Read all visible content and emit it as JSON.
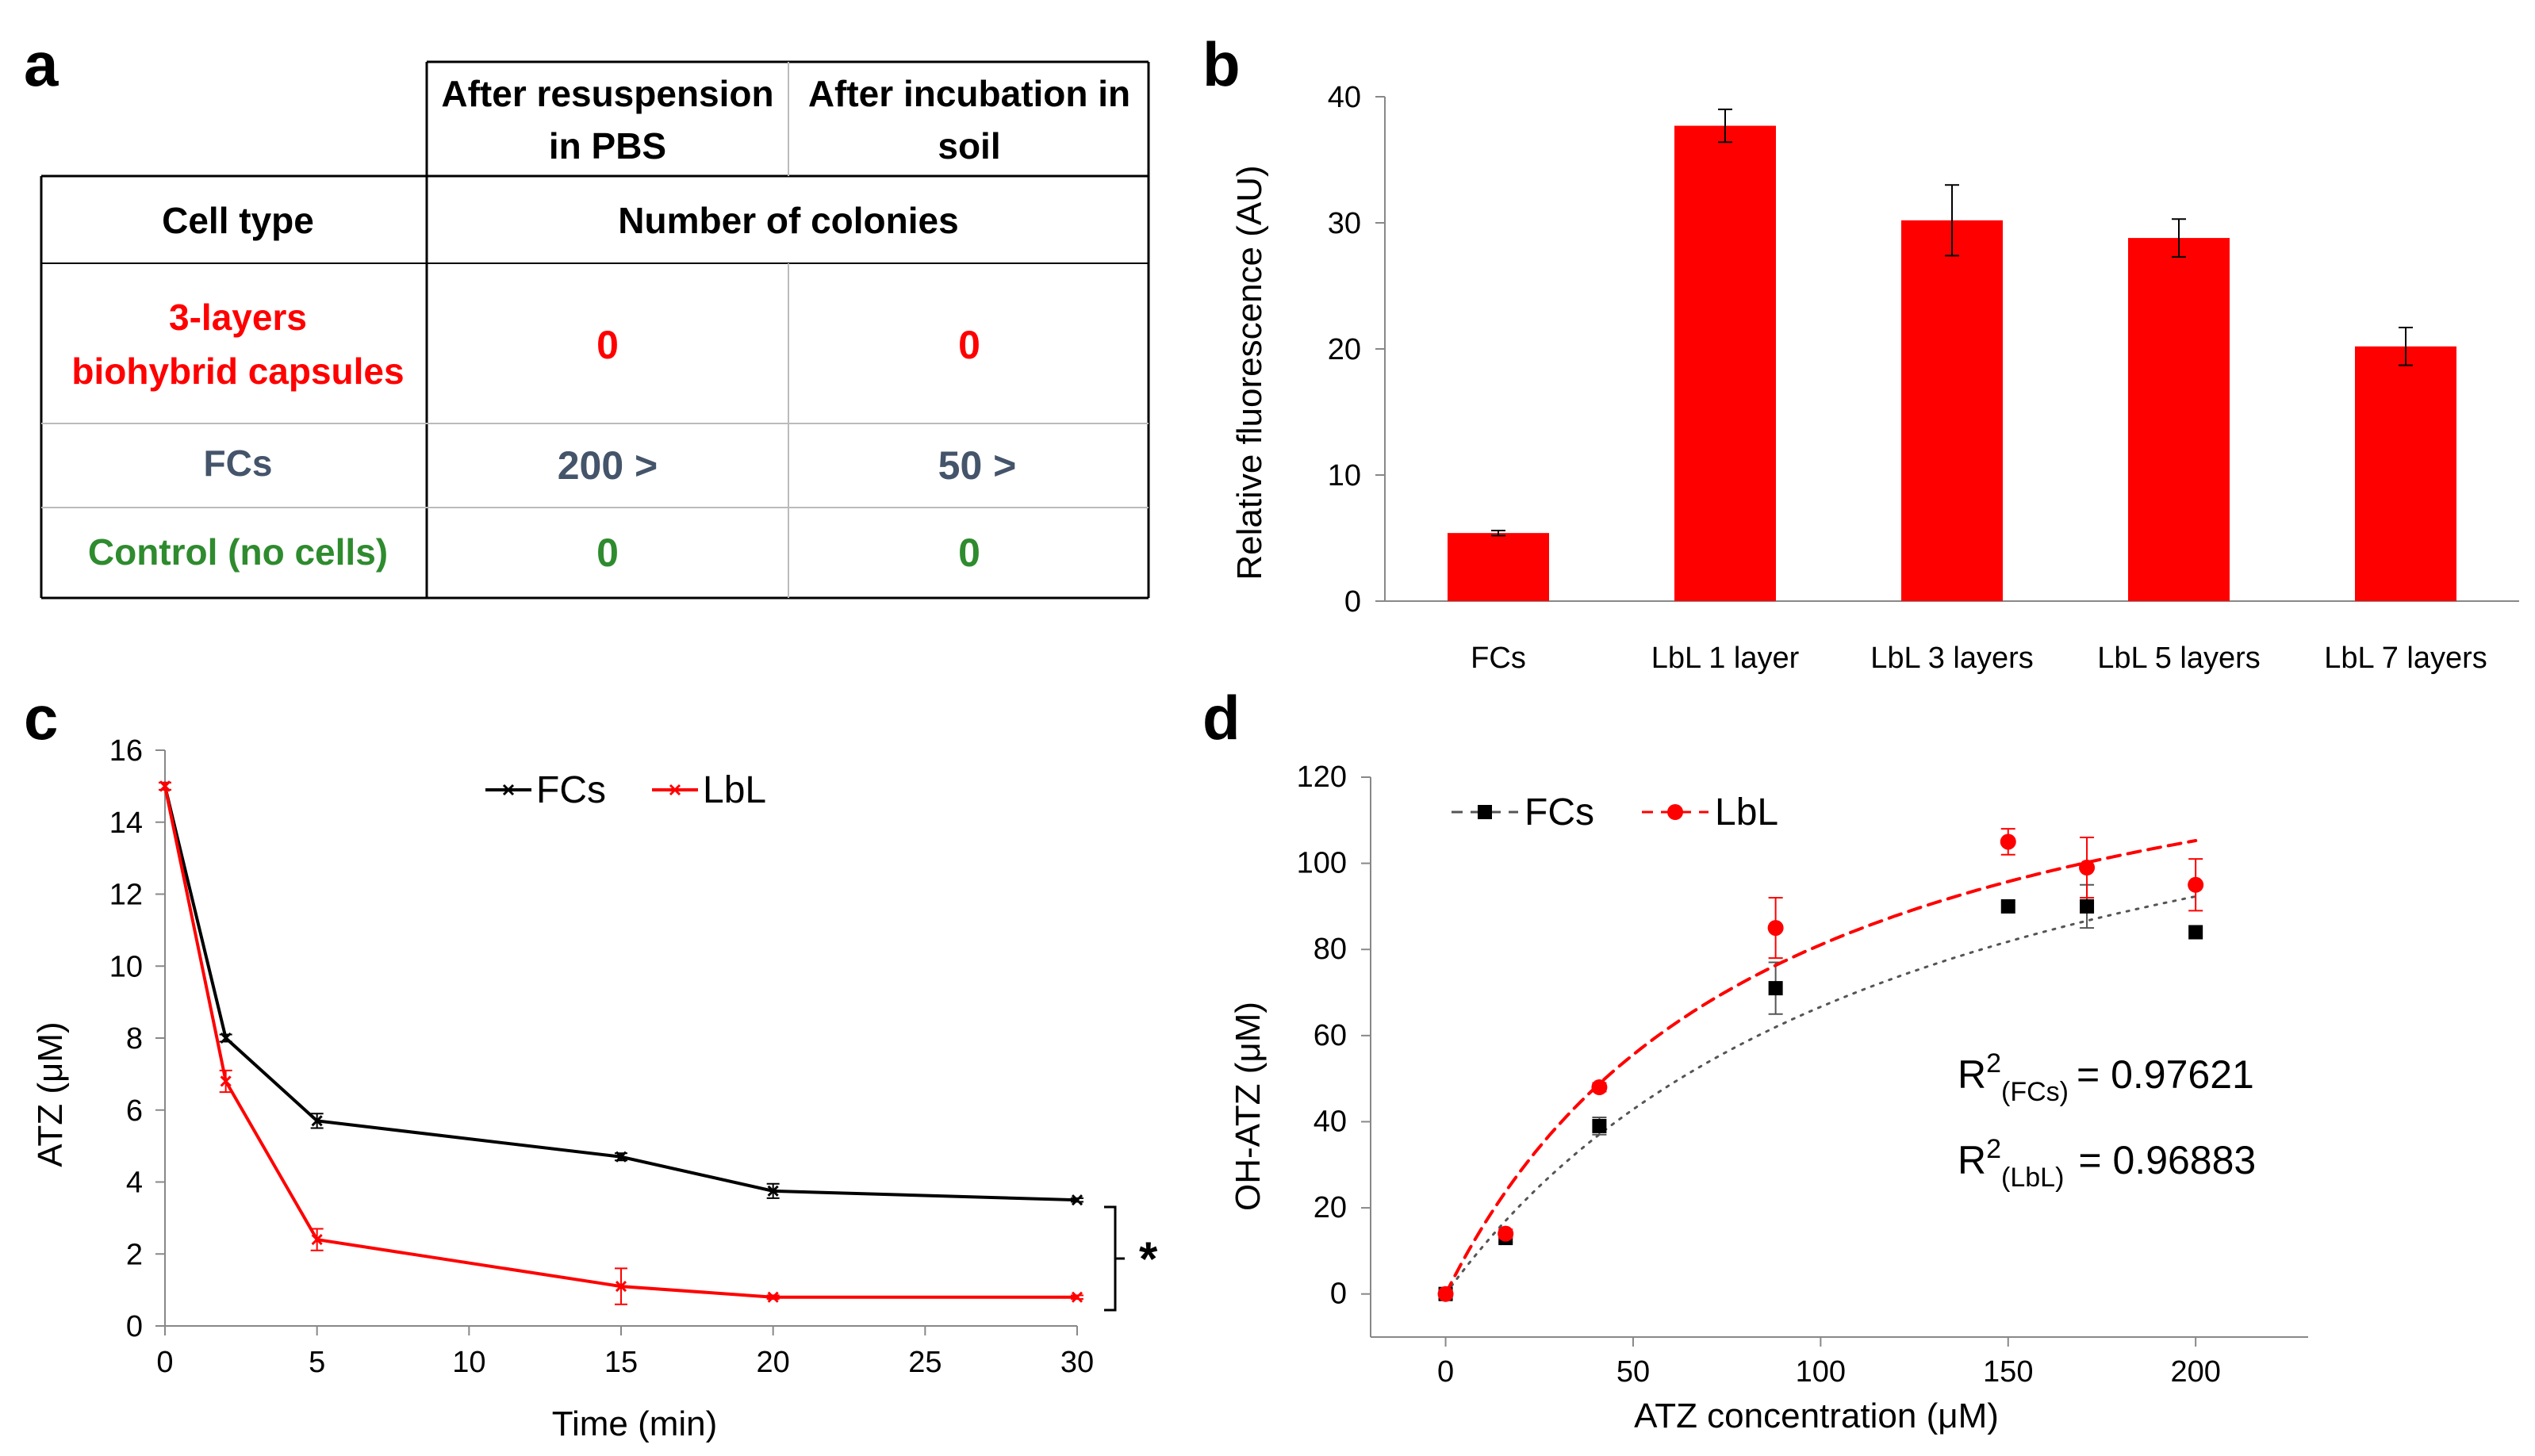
{
  "panels": {
    "a": {
      "label": "a",
      "header_col1_line1": "After resuspension",
      "header_col1_line2": "in PBS",
      "header_col2_line1": "After incubation in",
      "header_col2_line2": "soil",
      "cell_type_label": "Cell type",
      "colonies_label": "Number of colonies",
      "rows": [
        {
          "name_line1": "3-layers",
          "name_line2": "biohybrid capsules",
          "pbs": "0",
          "soil": "0",
          "color": "#ff0000"
        },
        {
          "name_line1": "FCs",
          "name_line2": "",
          "pbs": "200 >",
          "soil": "50 >",
          "color": "#44546a"
        },
        {
          "name_line1": "Control (no cells)",
          "name_line2": "",
          "pbs": "0",
          "soil": "0",
          "color": "#2e8b2e"
        }
      ]
    },
    "b": {
      "label": "b"
    },
    "c": {
      "label": "c",
      "significance": "*"
    },
    "d": {
      "label": "d",
      "r2_prefix": "R",
      "r2_sup": "2",
      "r2_fcs_sub": "(FCs)",
      "r2_fcs_value": "= 0.97621",
      "r2_lbl_sub": "(LbL)",
      "r2_lbl_value": "= 0.96883"
    }
  },
  "chart_data": [
    {
      "panel": "b",
      "type": "bar",
      "categories": [
        "FCs",
        "LbL 1   layer",
        "LbL 3 layers",
        "LbL 5 layers",
        "LbL 7 layers"
      ],
      "values": [
        5.4,
        37.7,
        30.2,
        28.8,
        20.2
      ],
      "errors": [
        0.2,
        1.3,
        2.8,
        1.5,
        1.5
      ],
      "ylabel": "Relative fluorescence (AU)",
      "xlabel": "",
      "ylim": [
        0,
        40
      ],
      "yticks": [
        0,
        10,
        20,
        30,
        40
      ],
      "bar_color": "#ff0000"
    },
    {
      "panel": "c",
      "type": "line",
      "xlabel": "Time (min)",
      "ylabel": "ATZ (μM)",
      "xlim": [
        0,
        30
      ],
      "ylim": [
        0,
        16
      ],
      "xticks": [
        0,
        5,
        10,
        15,
        20,
        25,
        30
      ],
      "yticks": [
        0,
        2,
        4,
        6,
        8,
        10,
        12,
        14,
        16
      ],
      "legend": "top-center",
      "series": [
        {
          "name": "FCs",
          "color": "#000000",
          "x": [
            0,
            2,
            5,
            15,
            20,
            30
          ],
          "y": [
            15.0,
            8.0,
            5.7,
            4.7,
            3.75,
            3.5
          ],
          "err": [
            0.1,
            0.1,
            0.2,
            0.1,
            0.2,
            0.05
          ]
        },
        {
          "name": "LbL",
          "color": "#ff0000",
          "x": [
            0,
            2,
            5,
            15,
            20,
            30
          ],
          "y": [
            15.0,
            6.8,
            2.4,
            1.1,
            0.8,
            0.8
          ],
          "err": [
            0.1,
            0.3,
            0.3,
            0.5,
            0.05,
            0.05
          ]
        }
      ]
    },
    {
      "panel": "d",
      "type": "scatter",
      "xlabel": "ATZ concentration (μM)",
      "ylabel": "OH-ATZ (μM)",
      "xlim": [
        -20,
        230
      ],
      "ylim": [
        -10,
        120
      ],
      "xticks": [
        0,
        50,
        100,
        150,
        200
      ],
      "yticks": [
        0,
        20,
        40,
        60,
        80,
        100,
        120
      ],
      "legend": "top-left",
      "series": [
        {
          "name": "FCs",
          "color": "#000000",
          "fit_color": "#555555",
          "marker": "square",
          "x": [
            0,
            16,
            41,
            88,
            150,
            171,
            200
          ],
          "y": [
            0,
            13,
            39,
            71,
            90,
            90,
            84
          ],
          "err": [
            0,
            1,
            2,
            6,
            0,
            5,
            0
          ],
          "fit": {
            "vmax": 150,
            "km": 125
          }
        },
        {
          "name": "LbL",
          "color": "#ff0000",
          "fit_color": "#ff0000",
          "marker": "circle",
          "x": [
            0,
            16,
            41,
            88,
            150,
            171,
            200
          ],
          "y": [
            0,
            14,
            48,
            85,
            105,
            99,
            95
          ],
          "err": [
            0,
            1,
            1,
            7,
            3,
            7,
            6
          ],
          "fit": {
            "vmax": 150,
            "km": 85
          }
        }
      ]
    }
  ]
}
